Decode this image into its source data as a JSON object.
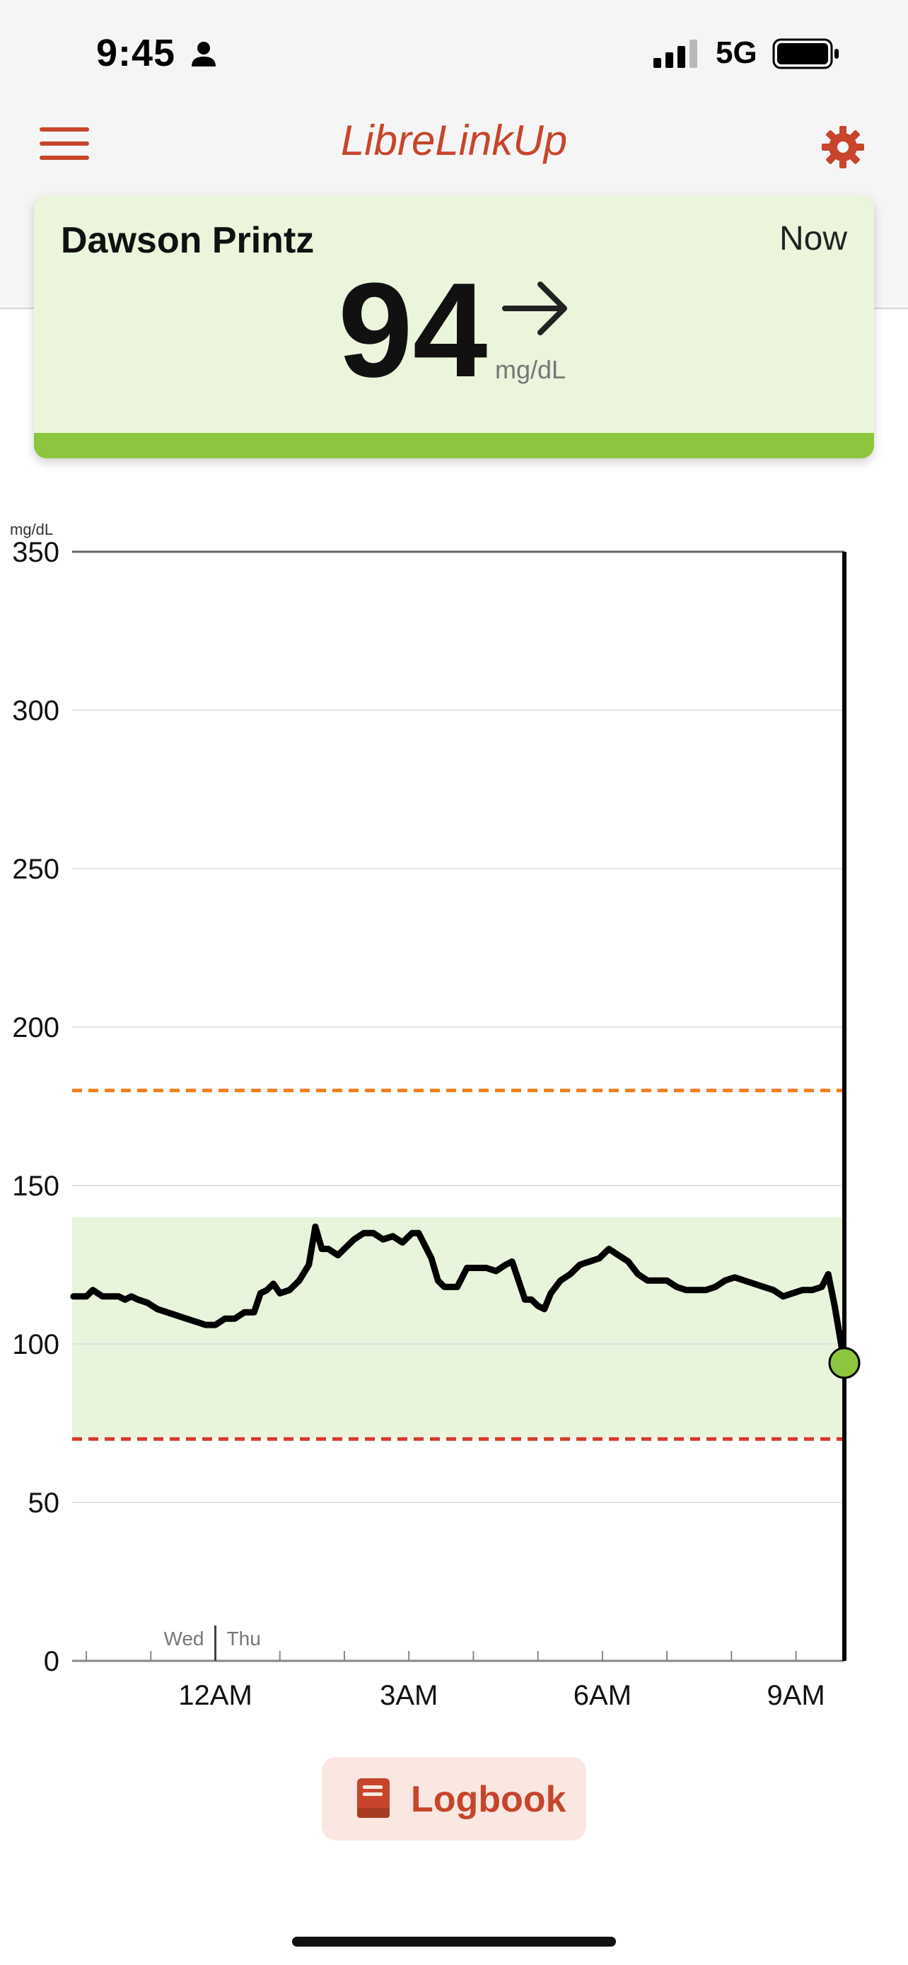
{
  "status_bar": {
    "time": "9:45",
    "network": "5G"
  },
  "header": {
    "title": "LibreLinkUp"
  },
  "reading": {
    "patient_name": "Dawson Printz",
    "time_label": "Now",
    "value": "94",
    "unit": "mg/dL",
    "trend": "steady-arrow-icon"
  },
  "chart_data": {
    "type": "line",
    "y_unit_label": "mg/dL",
    "ylim": [
      0,
      350
    ],
    "y_ticks": [
      0,
      50,
      100,
      150,
      200,
      250,
      300,
      350
    ],
    "x_tick_labels": [
      {
        "label": "12AM",
        "hour": 0
      },
      {
        "label": "3AM",
        "hour": 3
      },
      {
        "label": "6AM",
        "hour": 6
      },
      {
        "label": "9AM",
        "hour": 9
      }
    ],
    "xlim": [
      -2.22,
      9.75
    ],
    "day_labels": {
      "before": "Wed",
      "after": "Thu",
      "boundary_hour": 0
    },
    "target_range": [
      70,
      140
    ],
    "high_limit": 180,
    "low_limit": 70,
    "series": [
      {
        "points": [
          [
            -2.2,
            115
          ],
          [
            -2.0,
            115
          ],
          [
            -1.9,
            117
          ],
          [
            -1.75,
            115
          ],
          [
            -1.5,
            115
          ],
          [
            -1.4,
            114
          ],
          [
            -1.3,
            115
          ],
          [
            -1.2,
            114
          ],
          [
            -1.05,
            113
          ],
          [
            -0.9,
            111
          ],
          [
            -0.75,
            110
          ],
          [
            -0.6,
            109
          ],
          [
            -0.45,
            108
          ],
          [
            -0.3,
            107
          ],
          [
            -0.15,
            106
          ],
          [
            0.0,
            106
          ],
          [
            0.15,
            108
          ],
          [
            0.3,
            108
          ],
          [
            0.45,
            110
          ],
          [
            0.6,
            110
          ],
          [
            0.7,
            116
          ],
          [
            0.8,
            117
          ],
          [
            0.9,
            119
          ],
          [
            1.0,
            116
          ],
          [
            1.15,
            117
          ],
          [
            1.3,
            120
          ],
          [
            1.45,
            125
          ],
          [
            1.55,
            137
          ],
          [
            1.65,
            130
          ],
          [
            1.75,
            130
          ],
          [
            1.9,
            128
          ],
          [
            2.0,
            130
          ],
          [
            2.15,
            133
          ],
          [
            2.3,
            135
          ],
          [
            2.45,
            135
          ],
          [
            2.6,
            133
          ],
          [
            2.75,
            134
          ],
          [
            2.9,
            132
          ],
          [
            3.05,
            135
          ],
          [
            3.15,
            135
          ],
          [
            3.25,
            131
          ],
          [
            3.35,
            127
          ],
          [
            3.45,
            120
          ],
          [
            3.55,
            118
          ],
          [
            3.65,
            118
          ],
          [
            3.75,
            118
          ],
          [
            3.9,
            124
          ],
          [
            4.05,
            124
          ],
          [
            4.2,
            124
          ],
          [
            4.35,
            123
          ],
          [
            4.5,
            125
          ],
          [
            4.6,
            126
          ],
          [
            4.7,
            120
          ],
          [
            4.8,
            114
          ],
          [
            4.9,
            114
          ],
          [
            5.0,
            112
          ],
          [
            5.1,
            111
          ],
          [
            5.2,
            116
          ],
          [
            5.35,
            120
          ],
          [
            5.5,
            122
          ],
          [
            5.65,
            125
          ],
          [
            5.8,
            126
          ],
          [
            5.95,
            127
          ],
          [
            6.1,
            130
          ],
          [
            6.25,
            128
          ],
          [
            6.4,
            126
          ],
          [
            6.55,
            122
          ],
          [
            6.7,
            120
          ],
          [
            6.85,
            120
          ],
          [
            7.0,
            120
          ],
          [
            7.15,
            118
          ],
          [
            7.3,
            117
          ],
          [
            7.45,
            117
          ],
          [
            7.6,
            117
          ],
          [
            7.75,
            118
          ],
          [
            7.9,
            120
          ],
          [
            8.05,
            121
          ],
          [
            8.2,
            120
          ],
          [
            8.35,
            119
          ],
          [
            8.5,
            118
          ],
          [
            8.65,
            117
          ],
          [
            8.8,
            115
          ],
          [
            8.95,
            116
          ],
          [
            9.1,
            117
          ],
          [
            9.25,
            117
          ],
          [
            9.4,
            118
          ],
          [
            9.5,
            122
          ],
          [
            9.6,
            112
          ],
          [
            9.75,
            94
          ]
        ]
      }
    ],
    "current_point": {
      "hour": 9.75,
      "value": 94
    }
  },
  "logbook_button": {
    "label": "Logbook"
  },
  "colors": {
    "accent": "#c8452b",
    "in_range": "#8cc63f",
    "target_band": "#e8f4db",
    "high_line": "#f07f1a",
    "low_line": "#d9392a"
  }
}
